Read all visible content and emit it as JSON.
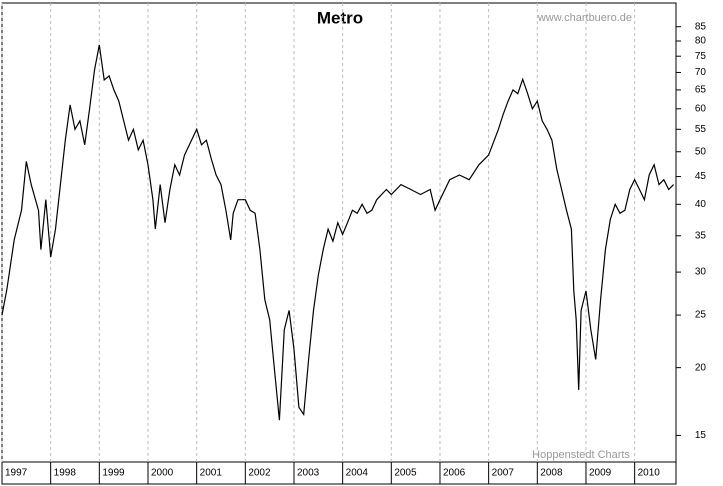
{
  "chart_data": {
    "type": "line",
    "title": "Metro",
    "source": "www.chartbuero.de",
    "credit": "Hoppenstedt Charts",
    "x": [
      1997.0,
      1997.1,
      1997.25,
      1997.4,
      1997.5,
      1997.6,
      1997.75,
      1997.8,
      1997.9,
      1998.0,
      1998.1,
      1998.2,
      1998.3,
      1998.4,
      1998.5,
      1998.6,
      1998.7,
      1998.8,
      1998.9,
      1999.0,
      1999.1,
      1999.2,
      1999.3,
      1999.4,
      1999.5,
      1999.6,
      1999.7,
      1999.8,
      1999.9,
      2000.0,
      2000.1,
      2000.15,
      2000.25,
      2000.35,
      2000.45,
      2000.55,
      2000.65,
      2000.75,
      2000.85,
      2001.0,
      2001.1,
      2001.2,
      2001.3,
      2001.4,
      2001.5,
      2001.6,
      2001.7,
      2001.75,
      2001.85,
      2002.0,
      2002.1,
      2002.2,
      2002.3,
      2002.4,
      2002.5,
      2002.6,
      2002.7,
      2002.8,
      2002.9,
      2003.0,
      2003.1,
      2003.2,
      2003.3,
      2003.4,
      2003.5,
      2003.6,
      2003.7,
      2003.8,
      2003.9,
      2004.0,
      2004.1,
      2004.2,
      2004.3,
      2004.4,
      2004.5,
      2004.6,
      2004.7,
      2004.8,
      2004.9,
      2005.0,
      2005.2,
      2005.4,
      2005.6,
      2005.8,
      2005.9,
      2006.0,
      2006.2,
      2006.4,
      2006.6,
      2006.8,
      2007.0,
      2007.2,
      2007.3,
      2007.4,
      2007.5,
      2007.6,
      2007.7,
      2007.8,
      2007.9,
      2008.0,
      2008.1,
      2008.2,
      2008.3,
      2008.4,
      2008.5,
      2008.6,
      2008.7,
      2008.75,
      2008.8,
      2008.85,
      2008.9,
      2009.0,
      2009.1,
      2009.2,
      2009.3,
      2009.4,
      2009.5,
      2009.6,
      2009.7,
      2009.8,
      2009.9,
      2010.0,
      2010.1,
      2010.2,
      2010.3,
      2010.4,
      2010.5,
      2010.6,
      2010.7,
      2010.8
    ],
    "values": [
      25.0,
      27.9,
      34.4,
      39,
      48,
      43.5,
      39,
      33,
      40.8,
      32,
      36,
      43.5,
      52.5,
      61,
      55,
      57,
      51.5,
      60,
      70.7,
      78.7,
      67.8,
      69,
      65,
      62,
      57,
      52.5,
      55,
      50.4,
      52.5,
      47.3,
      40.8,
      36,
      43.5,
      37,
      42.6,
      47.3,
      45.3,
      49.3,
      51.5,
      55,
      51.5,
      52.5,
      48.5,
      45.3,
      43.5,
      39,
      34.4,
      38.5,
      40.8,
      40.8,
      39,
      38.5,
      33,
      26.7,
      24.5,
      19.8,
      16,
      23.5,
      25.5,
      21.6,
      16.9,
      16.4,
      20.7,
      25.5,
      29.6,
      33,
      36,
      34.2,
      37,
      35.2,
      37,
      39,
      38.5,
      40,
      38.5,
      39,
      40.8,
      41.7,
      42.6,
      41.7,
      43.5,
      42.6,
      41.7,
      42.6,
      39,
      40.8,
      44.4,
      45.3,
      44.4,
      47.3,
      49.3,
      55,
      58.6,
      62,
      65,
      64,
      68,
      64,
      60,
      62,
      57,
      55,
      52.5,
      46.4,
      42.6,
      39,
      36,
      27.7,
      24.5,
      18.2,
      25.5,
      27.7,
      23.5,
      20.7,
      26.7,
      33,
      37.5,
      40,
      38.5,
      39,
      42.6,
      44.4,
      42.6,
      40.8,
      45.3,
      47.3,
      43.5,
      44.4,
      42.6,
      43.5
    ],
    "color": "#000000",
    "xlim": [
      1997.0,
      2010.85
    ],
    "xticks": [
      1997,
      1998,
      1999,
      2000,
      2001,
      2002,
      2003,
      2004,
      2005,
      2006,
      2007,
      2008,
      2009,
      2010
    ],
    "ylim": [
      13.4,
      94
    ],
    "yticks": [
      15,
      20,
      25,
      30,
      35,
      40,
      45,
      50,
      55,
      60,
      65,
      70,
      75,
      80,
      85
    ],
    "log_y": true,
    "grid": true
  }
}
